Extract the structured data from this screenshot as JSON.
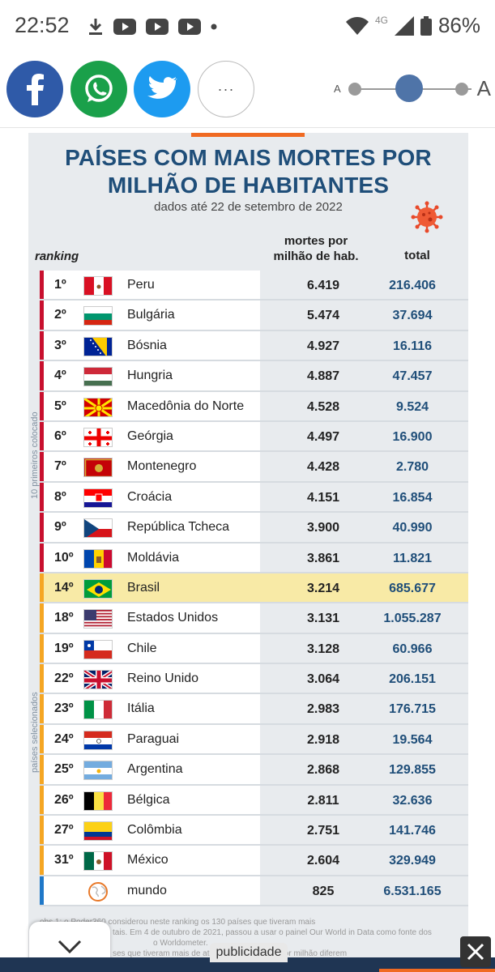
{
  "status": {
    "time": "22:52",
    "network": "4G",
    "battery": "86%"
  },
  "share": {
    "more_label": "···",
    "font_small": "A",
    "font_large": "A"
  },
  "infographic": {
    "title_line1": "PAÍSES COM MAIS MORTES POR",
    "title_line2": "MILHÃO DE HABITANTES",
    "subtitle": "dados até 22 de setembro de 2022",
    "header_ranking": "ranking",
    "header_deaths_line1": "mortes por",
    "header_deaths_line2": "milhão de hab.",
    "header_total": "total",
    "label_top10": "10 primeiros colocado",
    "label_selected": "países selecionados",
    "rows": [
      {
        "rank": "1º",
        "country": "Peru",
        "deaths": "6.419",
        "total": "216.406",
        "flag": "peru"
      },
      {
        "rank": "2º",
        "country": "Bulgária",
        "deaths": "5.474",
        "total": "37.694",
        "flag": "bulgaria"
      },
      {
        "rank": "3º",
        "country": "Bósnia",
        "deaths": "4.927",
        "total": "16.116",
        "flag": "bosnia"
      },
      {
        "rank": "4º",
        "country": "Hungria",
        "deaths": "4.887",
        "total": "47.457",
        "flag": "hungary"
      },
      {
        "rank": "5º",
        "country": "Macedônia do Norte",
        "deaths": "4.528",
        "total": "9.524",
        "flag": "macedonia"
      },
      {
        "rank": "6º",
        "country": "Geórgia",
        "deaths": "4.497",
        "total": "16.900",
        "flag": "georgia"
      },
      {
        "rank": "7º",
        "country": "Montenegro",
        "deaths": "4.428",
        "total": "2.780",
        "flag": "montenegro"
      },
      {
        "rank": "8º",
        "country": "Croácia",
        "deaths": "4.151",
        "total": "16.854",
        "flag": "croatia"
      },
      {
        "rank": "9º",
        "country": "República Tcheca",
        "deaths": "3.900",
        "total": "40.990",
        "flag": "czech"
      },
      {
        "rank": "10º",
        "country": "Moldávia",
        "deaths": "3.861",
        "total": "11.821",
        "flag": "moldova"
      },
      {
        "rank": "14º",
        "country": "Brasil",
        "deaths": "3.214",
        "total": "685.677",
        "flag": "brazil"
      },
      {
        "rank": "18º",
        "country": "Estados Unidos",
        "deaths": "3.131",
        "total": "1.055.287",
        "flag": "usa"
      },
      {
        "rank": "19º",
        "country": "Chile",
        "deaths": "3.128",
        "total": "60.966",
        "flag": "chile"
      },
      {
        "rank": "22º",
        "country": "Reino Unido",
        "deaths": "3.064",
        "total": "206.151",
        "flag": "uk"
      },
      {
        "rank": "23º",
        "country": "Itália",
        "deaths": "2.983",
        "total": "176.715",
        "flag": "italy"
      },
      {
        "rank": "24º",
        "country": "Paraguai",
        "deaths": "2.918",
        "total": "19.564",
        "flag": "paraguay"
      },
      {
        "rank": "25º",
        "country": "Argentina",
        "deaths": "2.868",
        "total": "129.855",
        "flag": "argentina"
      },
      {
        "rank": "26º",
        "country": "Bélgica",
        "deaths": "2.811",
        "total": "32.636",
        "flag": "belgium"
      },
      {
        "rank": "27º",
        "country": "Colômbia",
        "deaths": "2.751",
        "total": "141.746",
        "flag": "colombia"
      },
      {
        "rank": "31º",
        "country": "México",
        "deaths": "2.604",
        "total": "329.949",
        "flag": "mexico"
      },
      {
        "rank": "",
        "country": "mundo",
        "deaths": "825",
        "total": "6.531.165",
        "flag": "world"
      }
    ],
    "footnote_line1": "obs.1: o Poder360 considerou neste ranking os 130 países que tiveram mais",
    "footnote_line2": "tais. Em 4 de outubro de 2021, passou a usar o painel Our World in Data como fonte dos",
    "footnote_line3": "o Worldometer.",
    "footnote_line4": "ses que tiveram mais de                        até agora. As mortes por milhão diferem"
  },
  "bottom": {
    "ad_label": "publicidade"
  },
  "colors": {
    "title": "#1f4e79",
    "top10_bar": "#c8102e",
    "selected_bar": "#f5a623",
    "world_bar": "#1f78c8",
    "highlight": "#f8eaa6"
  }
}
